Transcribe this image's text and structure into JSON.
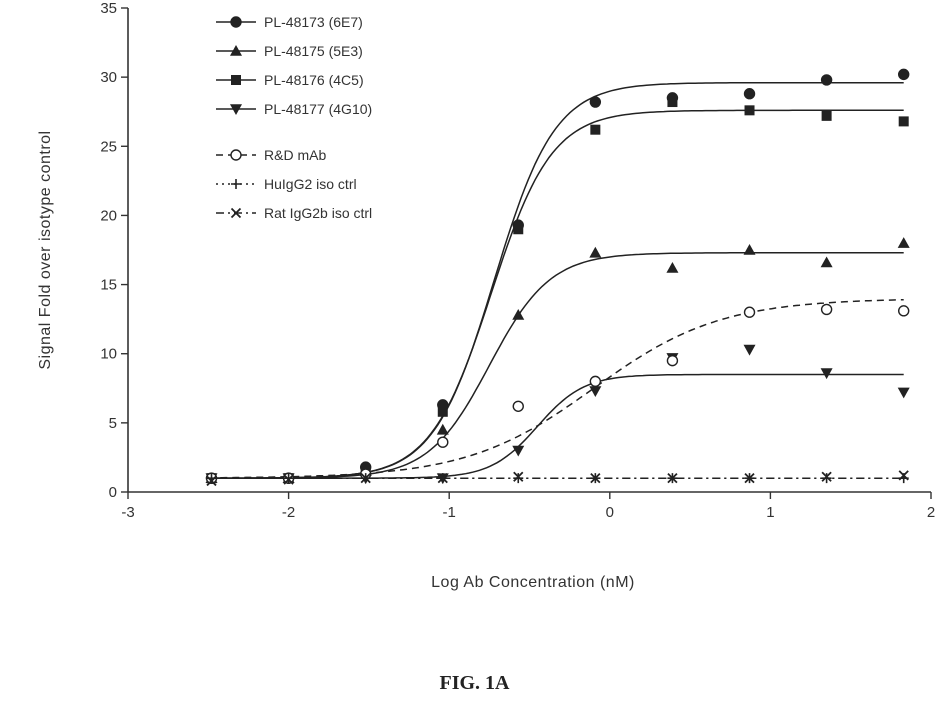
{
  "chart_data": {
    "type": "line",
    "xlabel": "Log Ab Concentration (nM)",
    "ylabel": "Signal Fold over isotype control",
    "xlim": [
      -3,
      2
    ],
    "ylim": [
      0,
      35
    ],
    "x_ticks": [
      -3,
      -2,
      -1,
      0,
      1,
      2
    ],
    "y_ticks": [
      0,
      5,
      10,
      15,
      20,
      25,
      30,
      35
    ],
    "x_tick_labels": [
      "-3",
      "-2",
      "-1",
      "0",
      "1",
      "2"
    ],
    "y_tick_labels": [
      "0",
      "5",
      "10",
      "15",
      "20",
      "25",
      "30",
      "35"
    ],
    "legend_position": "top-left",
    "series": [
      {
        "name": "PL-48173 (6E7)",
        "marker": "circle",
        "line_style": "solid",
        "color": "#222222",
        "points": [
          {
            "x": -2.48,
            "y": 1.0
          },
          {
            "x": -2.0,
            "y": 1.0
          },
          {
            "x": -1.52,
            "y": 1.8
          },
          {
            "x": -1.04,
            "y": 6.3
          },
          {
            "x": -0.57,
            "y": 19.3
          },
          {
            "x": -0.09,
            "y": 28.2
          },
          {
            "x": 0.39,
            "y": 28.5
          },
          {
            "x": 0.87,
            "y": 28.8
          },
          {
            "x": 1.35,
            "y": 29.8
          },
          {
            "x": 1.83,
            "y": 30.2
          }
        ],
        "curve": {
          "bottom": 1.0,
          "top": 29.6,
          "logEC50": -0.72,
          "hill": 2.3
        }
      },
      {
        "name": "PL-48175 (5E3)",
        "marker": "triangle-up",
        "line_style": "solid",
        "color": "#222222",
        "points": [
          {
            "x": -2.48,
            "y": 1.0
          },
          {
            "x": -2.0,
            "y": 1.0
          },
          {
            "x": -1.52,
            "y": 1.5
          },
          {
            "x": -1.04,
            "y": 4.5
          },
          {
            "x": -0.57,
            "y": 12.8
          },
          {
            "x": -0.09,
            "y": 17.3
          },
          {
            "x": 0.39,
            "y": 16.2
          },
          {
            "x": 0.87,
            "y": 17.5
          },
          {
            "x": 1.35,
            "y": 16.6
          },
          {
            "x": 1.83,
            "y": 18.0
          }
        ],
        "curve": {
          "bottom": 1.0,
          "top": 17.3,
          "logEC50": -0.75,
          "hill": 2.3
        }
      },
      {
        "name": "PL-48176 (4C5)",
        "marker": "square",
        "line_style": "solid",
        "color": "#222222",
        "points": [
          {
            "x": -2.48,
            "y": 1.0
          },
          {
            "x": -2.0,
            "y": 1.0
          },
          {
            "x": -1.52,
            "y": 1.5
          },
          {
            "x": -1.04,
            "y": 5.8
          },
          {
            "x": -0.57,
            "y": 19.0
          },
          {
            "x": -0.09,
            "y": 26.2
          },
          {
            "x": 0.39,
            "y": 28.2
          },
          {
            "x": 0.87,
            "y": 27.6
          },
          {
            "x": 1.35,
            "y": 27.2
          },
          {
            "x": 1.83,
            "y": 26.8
          }
        ],
        "curve": {
          "bottom": 1.0,
          "top": 27.6,
          "logEC50": -0.74,
          "hill": 2.3
        }
      },
      {
        "name": "PL-48177 (4G10)",
        "marker": "triangle-down",
        "line_style": "solid",
        "color": "#222222",
        "points": [
          {
            "x": -2.48,
            "y": 1.0
          },
          {
            "x": -2.0,
            "y": 1.0
          },
          {
            "x": -1.52,
            "y": 1.0
          },
          {
            "x": -1.04,
            "y": 1.0
          },
          {
            "x": -0.57,
            "y": 3.0
          },
          {
            "x": -0.09,
            "y": 7.3
          },
          {
            "x": 0.39,
            "y": 9.7
          },
          {
            "x": 0.87,
            "y": 10.3
          },
          {
            "x": 1.35,
            "y": 8.6
          },
          {
            "x": 1.83,
            "y": 7.2
          }
        ],
        "curve": {
          "bottom": 1.0,
          "top": 8.5,
          "logEC50": -0.45,
          "hill": 3.0
        }
      },
      {
        "name": "R&D mAb",
        "marker": "open-circle",
        "line_style": "dashed",
        "color": "#222222",
        "points": [
          {
            "x": -2.48,
            "y": 1.0
          },
          {
            "x": -2.0,
            "y": 1.0
          },
          {
            "x": -1.52,
            "y": 1.3
          },
          {
            "x": -1.04,
            "y": 3.6
          },
          {
            "x": -0.57,
            "y": 6.2
          },
          {
            "x": -0.09,
            "y": 8.0
          },
          {
            "x": 0.39,
            "y": 9.5
          },
          {
            "x": 0.87,
            "y": 13.0
          },
          {
            "x": 1.35,
            "y": 13.2
          },
          {
            "x": 1.83,
            "y": 13.1
          }
        ],
        "curve": {
          "bottom": 1.0,
          "top": 14.0,
          "logEC50": -0.1,
          "hill": 1.1
        }
      },
      {
        "name": "HuIgG2 iso ctrl",
        "marker": "plus",
        "line_style": "dotted",
        "color": "#222222",
        "points": [
          {
            "x": -2.48,
            "y": 1.0
          },
          {
            "x": -2.0,
            "y": 1.0
          },
          {
            "x": -1.52,
            "y": 1.0
          },
          {
            "x": -1.04,
            "y": 1.0
          },
          {
            "x": -0.57,
            "y": 1.0
          },
          {
            "x": -0.09,
            "y": 1.0
          },
          {
            "x": 0.39,
            "y": 1.0
          },
          {
            "x": 0.87,
            "y": 1.0
          },
          {
            "x": 1.35,
            "y": 1.0
          },
          {
            "x": 1.83,
            "y": 1.0
          }
        ],
        "curve": {
          "bottom": 1.0,
          "top": 1.0,
          "logEC50": 0,
          "hill": 1
        }
      },
      {
        "name": "Rat IgG2b iso ctrl",
        "marker": "x",
        "line_style": "dash-dot",
        "color": "#222222",
        "points": [
          {
            "x": -2.48,
            "y": 0.8
          },
          {
            "x": -2.0,
            "y": 0.9
          },
          {
            "x": -1.52,
            "y": 1.0
          },
          {
            "x": -1.04,
            "y": 1.0
          },
          {
            "x": -0.57,
            "y": 1.1
          },
          {
            "x": -0.09,
            "y": 1.0
          },
          {
            "x": 0.39,
            "y": 1.0
          },
          {
            "x": 0.87,
            "y": 1.0
          },
          {
            "x": 1.35,
            "y": 1.1
          },
          {
            "x": 1.83,
            "y": 1.2
          }
        ],
        "curve": {
          "bottom": 1.0,
          "top": 1.0,
          "logEC50": 0,
          "hill": 1
        }
      }
    ]
  },
  "figure": {
    "caption": "FIG. 1A"
  }
}
